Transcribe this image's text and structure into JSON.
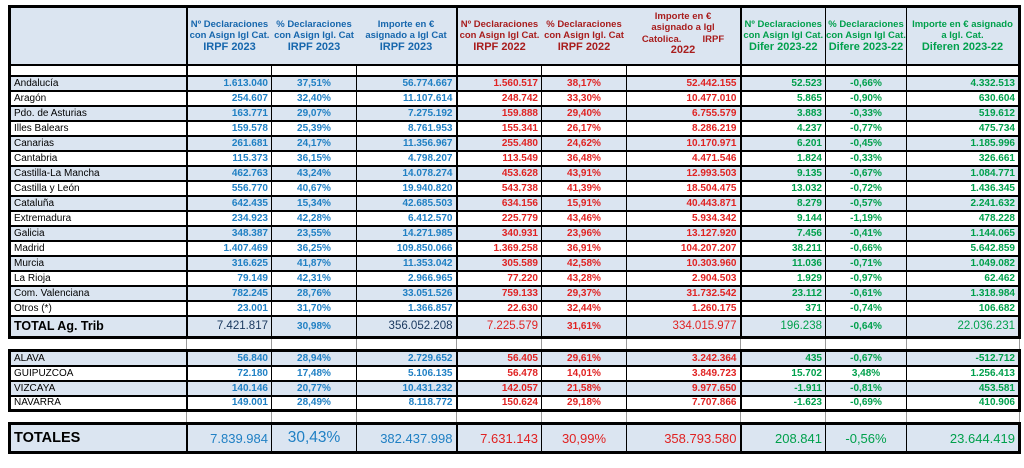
{
  "table": {
    "corner_label": "",
    "colors": {
      "blue_2023_header": "#1767ad",
      "blue_2023_data": "#2080c4",
      "red_2022_header": "#a81d1d",
      "red_2022_data": "#e02222",
      "green_diff": "#00a04c",
      "stripe_bg": "#dbe5f1",
      "border": "#000000"
    },
    "columns": [
      {
        "id": "n-2023",
        "group": "g2023",
        "lines": [
          "Nº Declaraciones",
          "con Asign Igl Cat.",
          "IRPF 2023"
        ]
      },
      {
        "id": "pct-2023",
        "group": "g2023",
        "lines": [
          "% Declaraciones",
          "con Asign Igl. Cat",
          "IRPF 2023"
        ]
      },
      {
        "id": "importe-2023",
        "group": "g2023",
        "lines": [
          "Importe en €",
          "asignado a Igl Cat",
          "IRPF 2023"
        ]
      },
      {
        "id": "n-2022",
        "group": "g2022",
        "lines": [
          "Nº Declaraciones",
          "con Asign Igl Cat.",
          "IRPF 2022"
        ]
      },
      {
        "id": "pct-2022",
        "group": "g2022",
        "lines": [
          "% Declaraciones",
          "con Asign Igl. Cat",
          "IRPF 2022"
        ]
      },
      {
        "id": "importe-2022",
        "group": "g2022",
        "lines": [
          "Importe en €",
          "asignado a Igl",
          "Catolica.        IRPF",
          "2022"
        ]
      },
      {
        "id": "n-difer",
        "group": "gdif",
        "lines": [
          "Nº Declaraciones",
          "con Asign Igl Cat.",
          "Difer 2023-22"
        ]
      },
      {
        "id": "pct-difere",
        "group": "gdif",
        "lines": [
          "% Declaraciones",
          "con Asign Igl Cat.",
          "Difere 2023-22"
        ]
      },
      {
        "id": "importe-diferen",
        "group": "gdif",
        "lines": [
          "Importe en € asignado",
          "a Igl. Cat.",
          "Diferen 2023-22"
        ]
      }
    ],
    "rows": [
      {
        "type": "spacer",
        "style": "dark"
      },
      {
        "type": "data",
        "name": "Andalucía",
        "values": [
          "1.613.040",
          "37,51%",
          "56.774.667",
          "1.560.517",
          "38,17%",
          "52.442.155",
          "52.523",
          "-0,66%",
          "4.332.513"
        ]
      },
      {
        "type": "data",
        "name": "Aragón",
        "values": [
          "254.607",
          "32,40%",
          "11.107.614",
          "248.742",
          "33,30%",
          "10.477.010",
          "5.865",
          "-0,90%",
          "630.604"
        ]
      },
      {
        "type": "data",
        "name": "Pdo. de Asturias",
        "values": [
          "163.771",
          "29,07%",
          "7.275.192",
          "159.888",
          "29,40%",
          "6.755.579",
          "3.883",
          "-0,33%",
          "519.612"
        ]
      },
      {
        "type": "data",
        "name": "Illes Balears",
        "values": [
          "159.578",
          "25,39%",
          "8.761.953",
          "155.341",
          "26,17%",
          "8.286.219",
          "4.237",
          "-0,77%",
          "475.734"
        ]
      },
      {
        "type": "data",
        "name": "Canarias",
        "values": [
          "261.681",
          "24,17%",
          "11.356.967",
          "255.480",
          "24,62%",
          "10.170.971",
          "6.201",
          "-0,45%",
          "1.185.996"
        ]
      },
      {
        "type": "data",
        "name": "Cantabria",
        "values": [
          "115.373",
          "36,15%",
          "4.798.207",
          "113.549",
          "36,48%",
          "4.471.546",
          "1.824",
          "-0,33%",
          "326.661"
        ]
      },
      {
        "type": "data",
        "name": "Castilla-La Mancha",
        "values": [
          "462.763",
          "43,24%",
          "14.078.274",
          "453.628",
          "43,91%",
          "12.993.503",
          "9.135",
          "-0,67%",
          "1.084.771"
        ]
      },
      {
        "type": "data",
        "name": "Castilla y León",
        "values": [
          "556.770",
          "40,67%",
          "19.940.820",
          "543.738",
          "41,39%",
          "18.504.475",
          "13.032",
          "-0,72%",
          "1.436.345"
        ]
      },
      {
        "type": "data",
        "name": "Cataluña",
        "values": [
          "642.435",
          "15,34%",
          "42.685.503",
          "634.156",
          "15,91%",
          "40.443.871",
          "8.279",
          "-0,57%",
          "2.241.632"
        ]
      },
      {
        "type": "data",
        "name": "Extremadura",
        "values": [
          "234.923",
          "42,28%",
          "6.412.570",
          "225.779",
          "43,46%",
          "5.934.342",
          "9.144",
          "-1,19%",
          "478.228"
        ]
      },
      {
        "type": "data",
        "name": "Galicia",
        "values": [
          "348.387",
          "23,55%",
          "14.271.985",
          "340.931",
          "23,96%",
          "13.127.920",
          "7.456",
          "-0,41%",
          "1.144.065"
        ]
      },
      {
        "type": "data",
        "name": "Madrid",
        "values": [
          "1.407.469",
          "36,25%",
          "109.850.066",
          "1.369.258",
          "36,91%",
          "104.207.207",
          "38.211",
          "-0,66%",
          "5.642.859"
        ]
      },
      {
        "type": "data",
        "name": "Murcia",
        "values": [
          "316.625",
          "41,87%",
          "11.353.042",
          "305.589",
          "42,58%",
          "10.303.960",
          "11.036",
          "-0,71%",
          "1.049.082"
        ]
      },
      {
        "type": "data",
        "name": "La Rioja",
        "values": [
          "79.149",
          "42,31%",
          "2.966.965",
          "77.220",
          "43,28%",
          "2.904.503",
          "1.929",
          "-0,97%",
          "62.462"
        ]
      },
      {
        "type": "data",
        "name": "Com. Valenciana",
        "values": [
          "782.245",
          "28,76%",
          "33.051.526",
          "759.133",
          "29,37%",
          "31.732.542",
          "23.112",
          "-0,61%",
          "1.318.984"
        ]
      },
      {
        "type": "data",
        "name": "Otros (*)",
        "values": [
          "23.001",
          "31,70%",
          "1.366.857",
          "22.630",
          "32,44%",
          "1.260.175",
          "371",
          "-0,74%",
          "106.682"
        ]
      },
      {
        "type": "total",
        "name": "TOTAL Ag. Trib",
        "dark_cols": [
          0,
          2
        ],
        "values": [
          "7.421.817",
          "30,98%",
          "356.052.208",
          "7.225.579",
          "31,61%",
          "334.015.977",
          "196.238",
          "-0,64%",
          "22.036.231"
        ]
      },
      {
        "type": "spacer",
        "style": "light"
      },
      {
        "type": "data",
        "name": "ALAVA",
        "values": [
          "56.840",
          "28,94%",
          "2.729.652",
          "56.405",
          "29,61%",
          "3.242.364",
          "435",
          "-0,67%",
          "-512.712"
        ]
      },
      {
        "type": "data",
        "name": "GUIPUZCOA",
        "values": [
          "72.180",
          "17,48%",
          "5.106.135",
          "56.478",
          "14,01%",
          "3.849.723",
          "15.702",
          "3,48%",
          "1.256.413"
        ]
      },
      {
        "type": "data",
        "name": "VIZCAYA",
        "values": [
          "140.146",
          "20,77%",
          "10.431.232",
          "142.057",
          "21,58%",
          "9.977.650",
          "-1.911",
          "-0,81%",
          "453.581"
        ]
      },
      {
        "type": "data",
        "name": "NAVARRA",
        "values": [
          "149.001",
          "28,49%",
          "8.118.772",
          "150.624",
          "29,18%",
          "7.707.866",
          "-1.623",
          "-0,69%",
          "410.906"
        ]
      },
      {
        "type": "spacer",
        "style": "light"
      },
      {
        "type": "grand",
        "name": "TOTALES",
        "big_cols": [
          1
        ],
        "values": [
          "7.839.984",
          "30,43%",
          "382.437.998",
          "7.631.143",
          "30,99%",
          "358.793.580",
          "208.841",
          "-0,56%",
          "23.644.419"
        ]
      }
    ]
  }
}
